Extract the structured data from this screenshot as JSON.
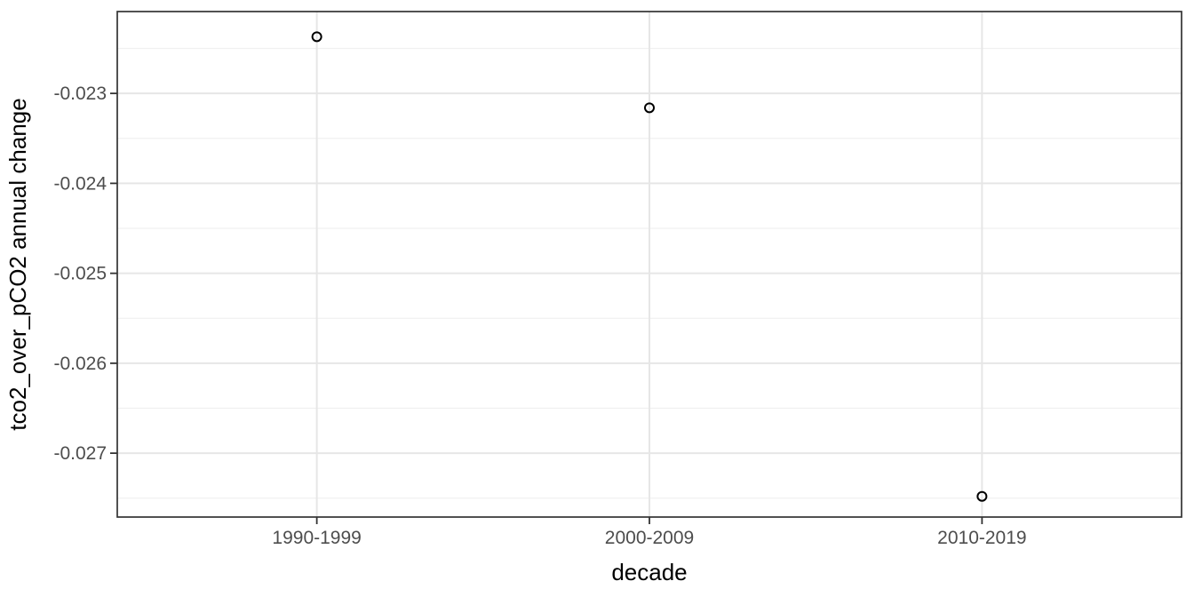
{
  "chart_data": {
    "type": "scatter",
    "xlabel": "decade",
    "ylabel": "tco2_over_pCO2 annual change",
    "categories": [
      "1990-1999",
      "2000-2009",
      "2010-2019"
    ],
    "values": [
      -0.02237,
      -0.02316,
      -0.02748
    ],
    "y_ticks": {
      "values": [
        -0.023,
        -0.024,
        -0.025,
        -0.026,
        -0.027
      ],
      "labels": [
        "-0.023",
        "-0.024",
        "-0.025",
        "-0.026",
        "-0.027"
      ]
    },
    "y_minor_gridlines": [
      -0.0225,
      -0.0235,
      -0.0245,
      -0.0255,
      -0.0265,
      -0.0275
    ],
    "ylim": [
      -0.02771,
      -0.02209
    ],
    "grid": {
      "horizontal_major": true,
      "horizontal_minor": true,
      "vertical_major": true,
      "vertical_minor": false
    },
    "legend": "none",
    "point_shape": "open-circle",
    "colors": {
      "point": "#000000",
      "panel_border": "#333333",
      "grid_major": "#e6e6e6",
      "grid_minor": "#f0f0f0",
      "tick": "#333333",
      "tick_label": "#4d4d4d",
      "axis_title": "#000000",
      "background": "#ffffff"
    }
  }
}
